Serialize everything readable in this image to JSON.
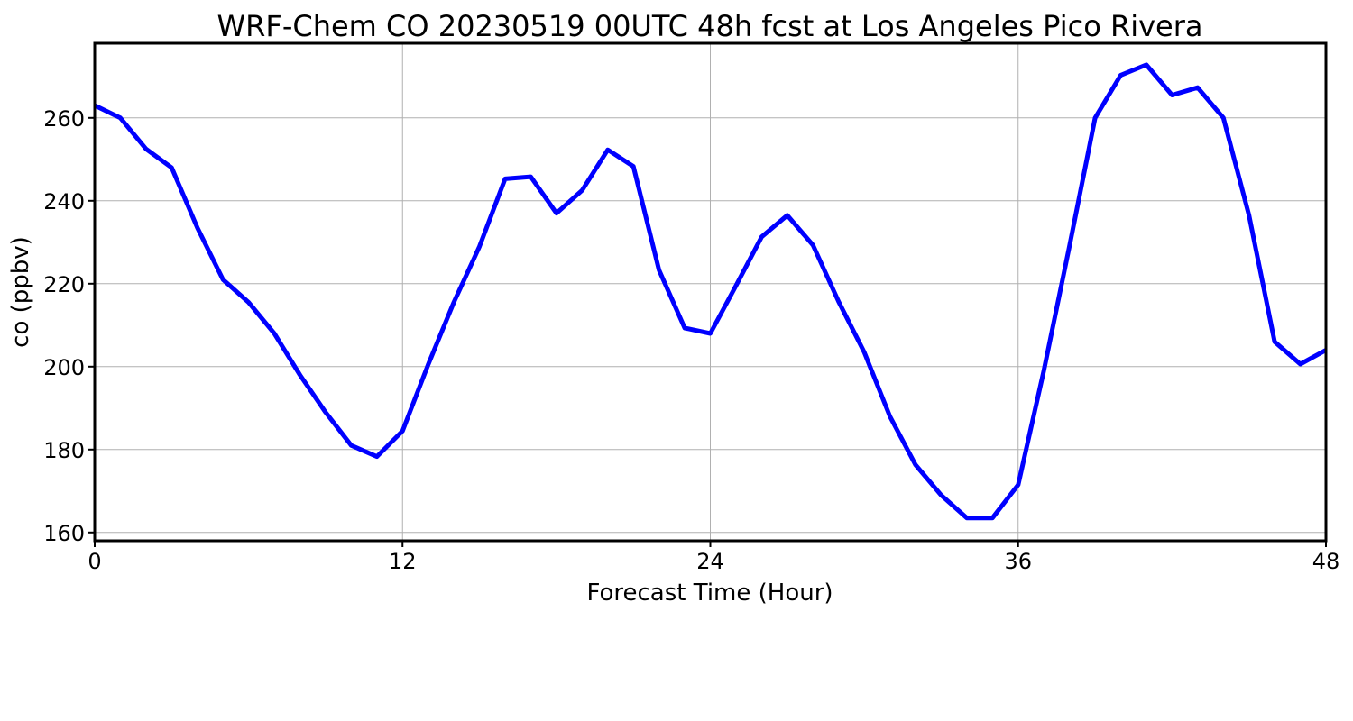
{
  "chart_data": {
    "type": "line",
    "title": "WRF-Chem CO  20230519 00UTC 48h fcst at Los Angeles Pico Rivera",
    "xlabel": "Forecast Time (Hour)",
    "ylabel": "co  (ppbv)",
    "xlim": [
      0,
      48
    ],
    "ylim": [
      158,
      278
    ],
    "xticks": [
      0,
      12,
      24,
      36,
      48
    ],
    "yticks": [
      160,
      180,
      200,
      220,
      240,
      260
    ],
    "grid": true,
    "series": [
      {
        "color": "#0000ff",
        "x": [
          0,
          1,
          2,
          3,
          4,
          5,
          6,
          7,
          8,
          9,
          10,
          11,
          12,
          13,
          14,
          15,
          16,
          17,
          18,
          19,
          20,
          21,
          22,
          23,
          24,
          25,
          26,
          27,
          28,
          29,
          30,
          31,
          32,
          33,
          34,
          35,
          36,
          37,
          38,
          39,
          40,
          41,
          42,
          43,
          44,
          45,
          46,
          47,
          48
        ],
        "values": [
          263,
          260,
          252.5,
          248,
          233.5,
          221,
          215.5,
          208,
          198,
          189,
          181,
          178.3,
          184.5,
          200.5,
          215.5,
          229,
          245.3,
          245.8,
          237,
          242.5,
          252.3,
          248.3,
          223.3,
          209.3,
          208,
          219.5,
          231.3,
          236.5,
          229.3,
          215.7,
          203.5,
          188,
          176.3,
          169,
          163.5,
          163.5,
          171.5,
          199,
          229,
          260,
          270.3,
          272.8,
          265.5,
          267.3,
          260,
          236.5,
          206,
          200.6,
          204
        ]
      }
    ]
  }
}
